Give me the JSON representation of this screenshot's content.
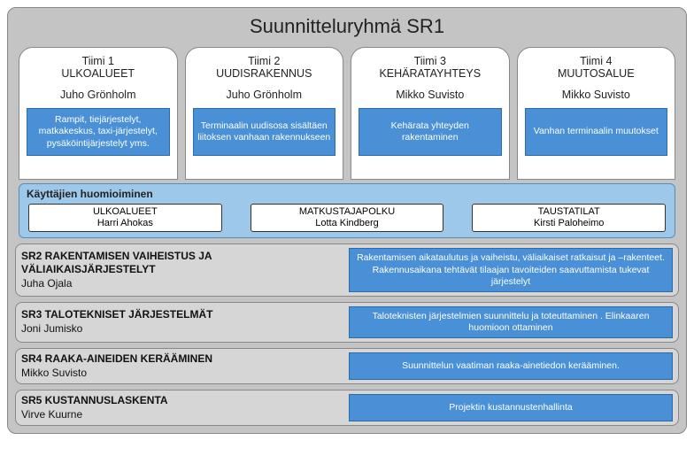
{
  "title": "Suunnitteluryhmä SR1",
  "colors": {
    "outer_bg": "#c4c4c4",
    "blue_box": "#4a90d6",
    "blue_panel": "#9ec8ea",
    "sr_bg": "#d6d6d6"
  },
  "teams": [
    {
      "num": "Tiimi 1",
      "name": "ULKOALUEET",
      "lead": "Juho Grönholm",
      "desc": "Rampit, tiejärjestelyt, matkakeskus, taxi-järjestelyt, pysäköintijärjestelyt yms."
    },
    {
      "num": "Tiimi 2",
      "name": "UUDISRAKENNUS",
      "lead": "Juho Grönholm",
      "desc": "Terminaalin uudisosa sisältäen liitoksen vanhaan rakennukseen"
    },
    {
      "num": "Tiimi 3",
      "name": "KEHÄRATAYHTEYS",
      "lead": "Mikko Suvisto",
      "desc": "Kehärata yhteyden rakentaminen"
    },
    {
      "num": "Tiimi 4",
      "name": "MUUTOSALUE",
      "lead": "Mikko Suvisto",
      "desc": "Vanhan terminaalin muutokset"
    }
  ],
  "users_panel": {
    "title": "Käyttäjien huomioiminen",
    "groups": [
      {
        "title": "ULKOALUEET",
        "person": "Harri Ahokas"
      },
      {
        "title": "MATKUSTAJAPOLKU",
        "person": "Lotta Kindberg"
      },
      {
        "title": "TAUSTATILAT",
        "person": "Kirsti Paloheimo"
      }
    ]
  },
  "sr_rows": [
    {
      "title": "SR2 RAKENTAMISEN VAIHEISTUS JA VÄLIAIKAISJÄRJESTELYT",
      "person": "Juha Ojala",
      "desc": "Rakentamisen aikataulutus ja vaiheistu, väliaikaiset ratkaisut ja –rakenteet. Rakennusaikana tehtävät tilaajan tavoiteiden saavuttamista tukevat järjestelyt"
    },
    {
      "title": "SR3 TALOTEKNISET JÄRJESTELMÄT",
      "person": "Joni Jumisko",
      "desc": "Taloteknisten järjestelmien suunnittelu ja toteuttaminen . Elinkaaren huomioon ottaminen"
    },
    {
      "title": "SR4 RAAKA-AINEIDEN KERÄÄMINEN",
      "person": "Mikko Suvisto",
      "desc": "Suunnittelun vaatiman raaka-ainetiedon kerääminen."
    },
    {
      "title": "SR5 KUSTANNUSLASKENTA",
      "person": "Virve Kuurne",
      "desc": "Projektin kustannustenhallinta"
    }
  ]
}
